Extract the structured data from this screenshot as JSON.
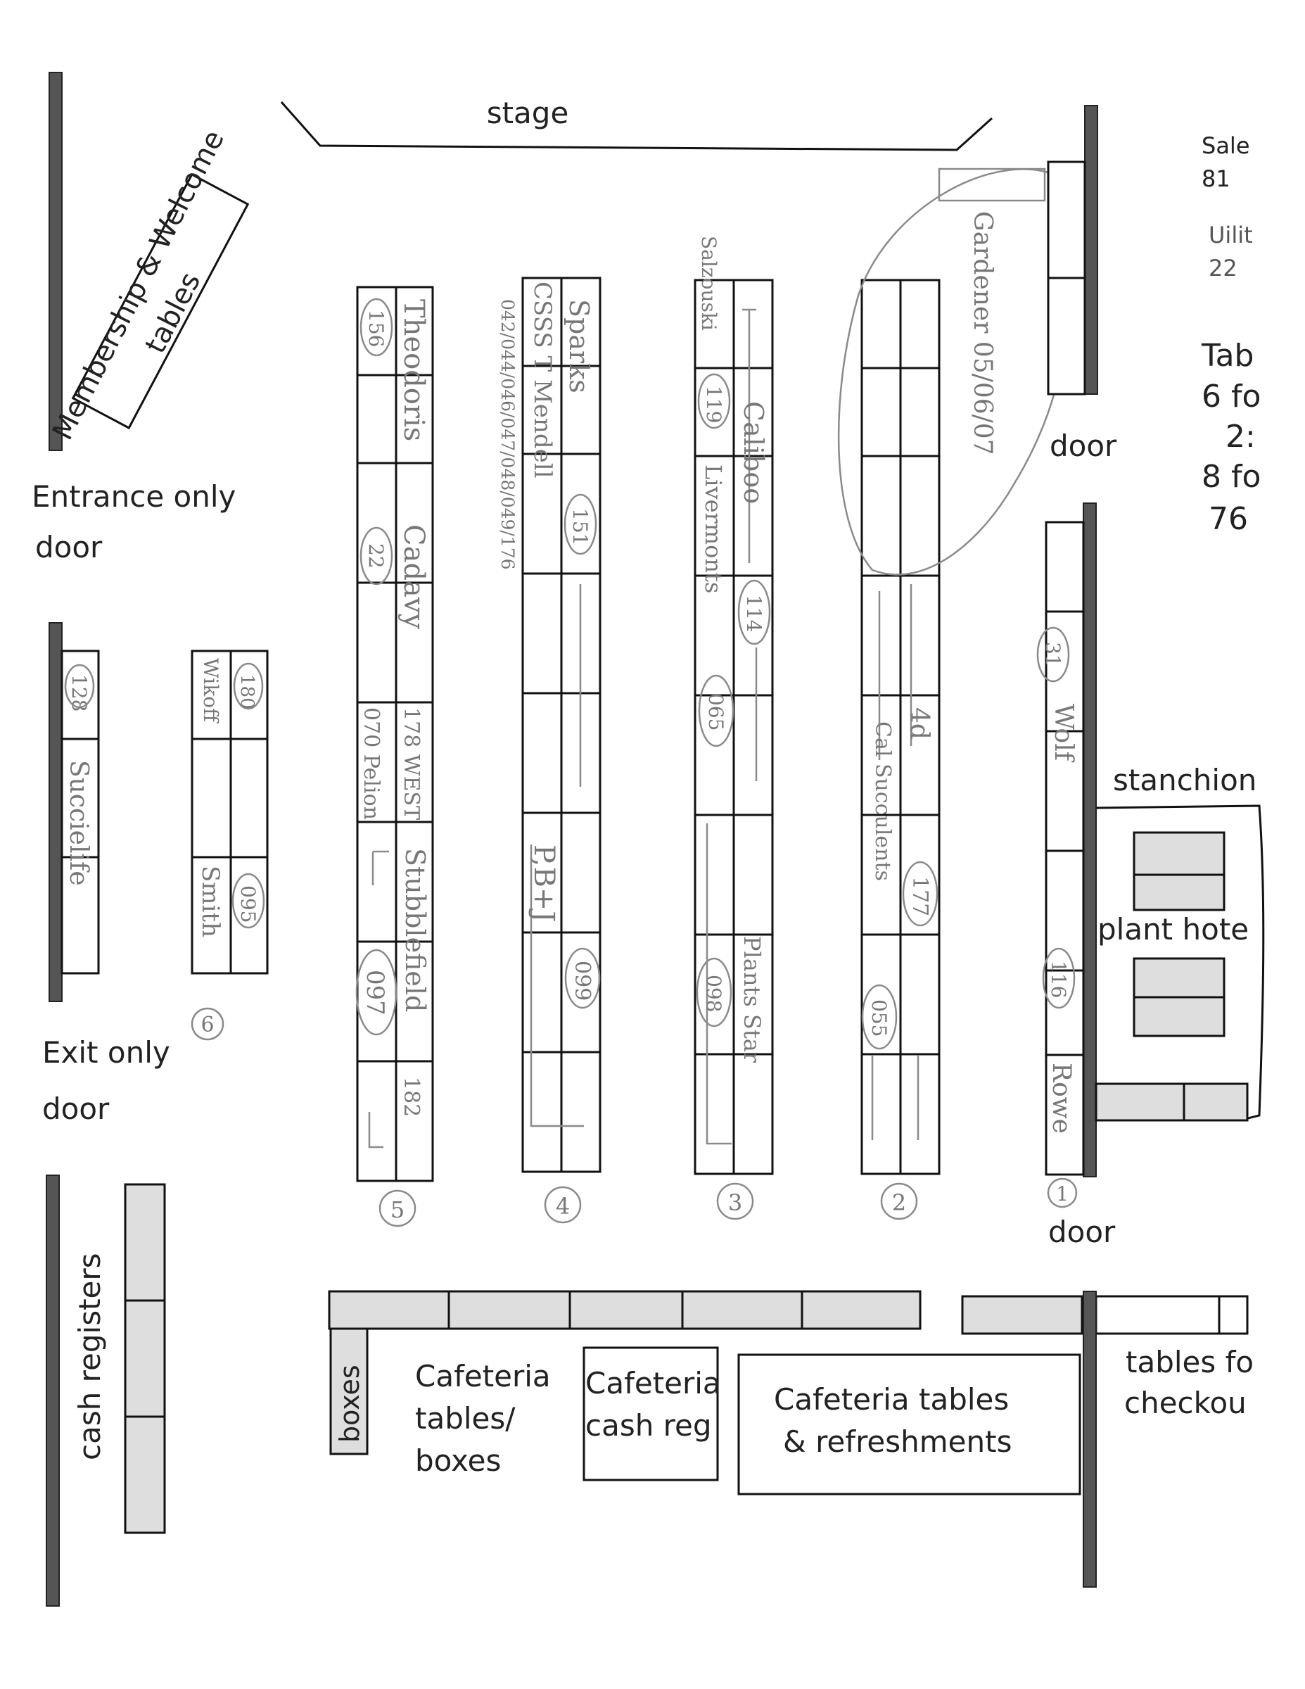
{
  "labels": {
    "stage": "stage",
    "membership": "Membership & Welcome",
    "membership_tables": "tables",
    "entrance": "Entrance only",
    "entrance_door": "door",
    "exit": "Exit only",
    "exit_door": "door",
    "cash_registers": "cash registers",
    "boxes": "boxes",
    "caf_tables_boxes": [
      "Cafeteria",
      "tables/",
      "boxes"
    ],
    "caf_cash_reg": [
      "Cafeteria",
      "cash reg"
    ],
    "caf_tables_refresh": [
      "Cafeteria  tables",
      "& refreshments"
    ],
    "door_top": "door",
    "door_bottom": "door",
    "stanchion": "stanchion",
    "plant_hotel": "plant hote",
    "tables_checkout": [
      "tables fo",
      "checkou"
    ],
    "legend": [
      "Sale",
      "81",
      "Uilit",
      "22",
      "Tab",
      "6 fo",
      "2:",
      "8 fo",
      "76"
    ]
  },
  "row_numbers": [
    "5",
    "4",
    "3",
    "2",
    "1",
    "6"
  ],
  "vendors": {
    "row5": [
      "Theodoris",
      "156",
      "Cadavy",
      "22",
      "178 WEST",
      "070 Pelion",
      "Stubblefield",
      "097",
      "182"
    ],
    "row4": [
      "Sparks",
      "151",
      "CSSS T Mendell",
      "042/044/046/047/048/049/176",
      "P,B+J",
      "099"
    ],
    "row3": [
      "Salzouski",
      "119",
      "Caliboo",
      "114",
      "Livermonts",
      "065",
      "Plants Star",
      "098"
    ],
    "row2": [
      "Gardener 05/06/07",
      "4d",
      "Cal Succulents",
      "177",
      "055"
    ],
    "row1": [
      "31",
      "Wolf",
      "116",
      "Rowe"
    ],
    "left": [
      "128",
      "Succielife",
      "180",
      "Wikoff",
      "095",
      "Smith"
    ]
  }
}
